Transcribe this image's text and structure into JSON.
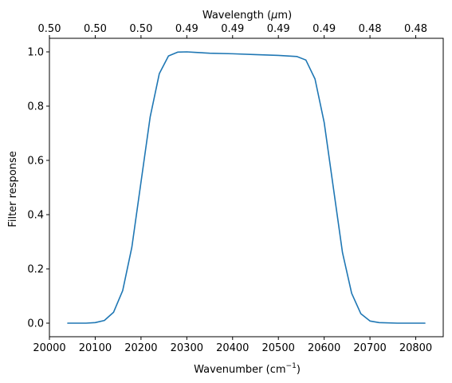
{
  "chart_data": {
    "type": "line",
    "title": "",
    "xlabel": "Wavenumber (cm",
    "xlabel_sup": "−1",
    "xlabel_close": ")",
    "ylabel": "Filter response",
    "top_xlabel": "Wavelength (",
    "top_xlabel_unit": "μ",
    "top_xlabel_end": "m)",
    "xlim": [
      20000,
      20860
    ],
    "ylim": [
      -0.05,
      1.05
    ],
    "x_ticks": [
      20000,
      20100,
      20200,
      20300,
      20400,
      20500,
      20600,
      20700,
      20800
    ],
    "x_tick_labels": [
      "20000",
      "20100",
      "20200",
      "20300",
      "20400",
      "20500",
      "20600",
      "20700",
      "20800"
    ],
    "y_ticks": [
      0.0,
      0.2,
      0.4,
      0.6,
      0.8,
      1.0
    ],
    "y_tick_labels": [
      "0.0",
      "0.2",
      "0.4",
      "0.6",
      "0.8",
      "1.0"
    ],
    "top_ticks": [
      20000,
      20100,
      20200,
      20300,
      20400,
      20500,
      20600,
      20700,
      20800
    ],
    "top_tick_labels": [
      "0.50",
      "0.50",
      "0.50",
      "0.49",
      "0.49",
      "0.49",
      "0.49",
      "0.48",
      "0.48"
    ],
    "grid": false,
    "colors": {
      "line": "#1f77b4",
      "axis": "#000000",
      "background": "#ffffff"
    },
    "series": [
      {
        "x": [
          20040,
          20080,
          20100,
          20120,
          20140,
          20160,
          20180,
          20200,
          20220,
          20240,
          20260,
          20280,
          20300,
          20320,
          20350,
          20400,
          20450,
          20500,
          20540,
          20560,
          20580,
          20600,
          20620,
          20640,
          20660,
          20680,
          20700,
          20720,
          20760,
          20820
        ],
        "y": [
          0.0,
          0.0,
          0.002,
          0.01,
          0.04,
          0.12,
          0.28,
          0.52,
          0.76,
          0.92,
          0.985,
          0.999,
          1.0,
          0.998,
          0.995,
          0.993,
          0.99,
          0.987,
          0.983,
          0.97,
          0.9,
          0.74,
          0.5,
          0.26,
          0.11,
          0.035,
          0.008,
          0.002,
          0.0,
          0.0
        ]
      }
    ]
  }
}
